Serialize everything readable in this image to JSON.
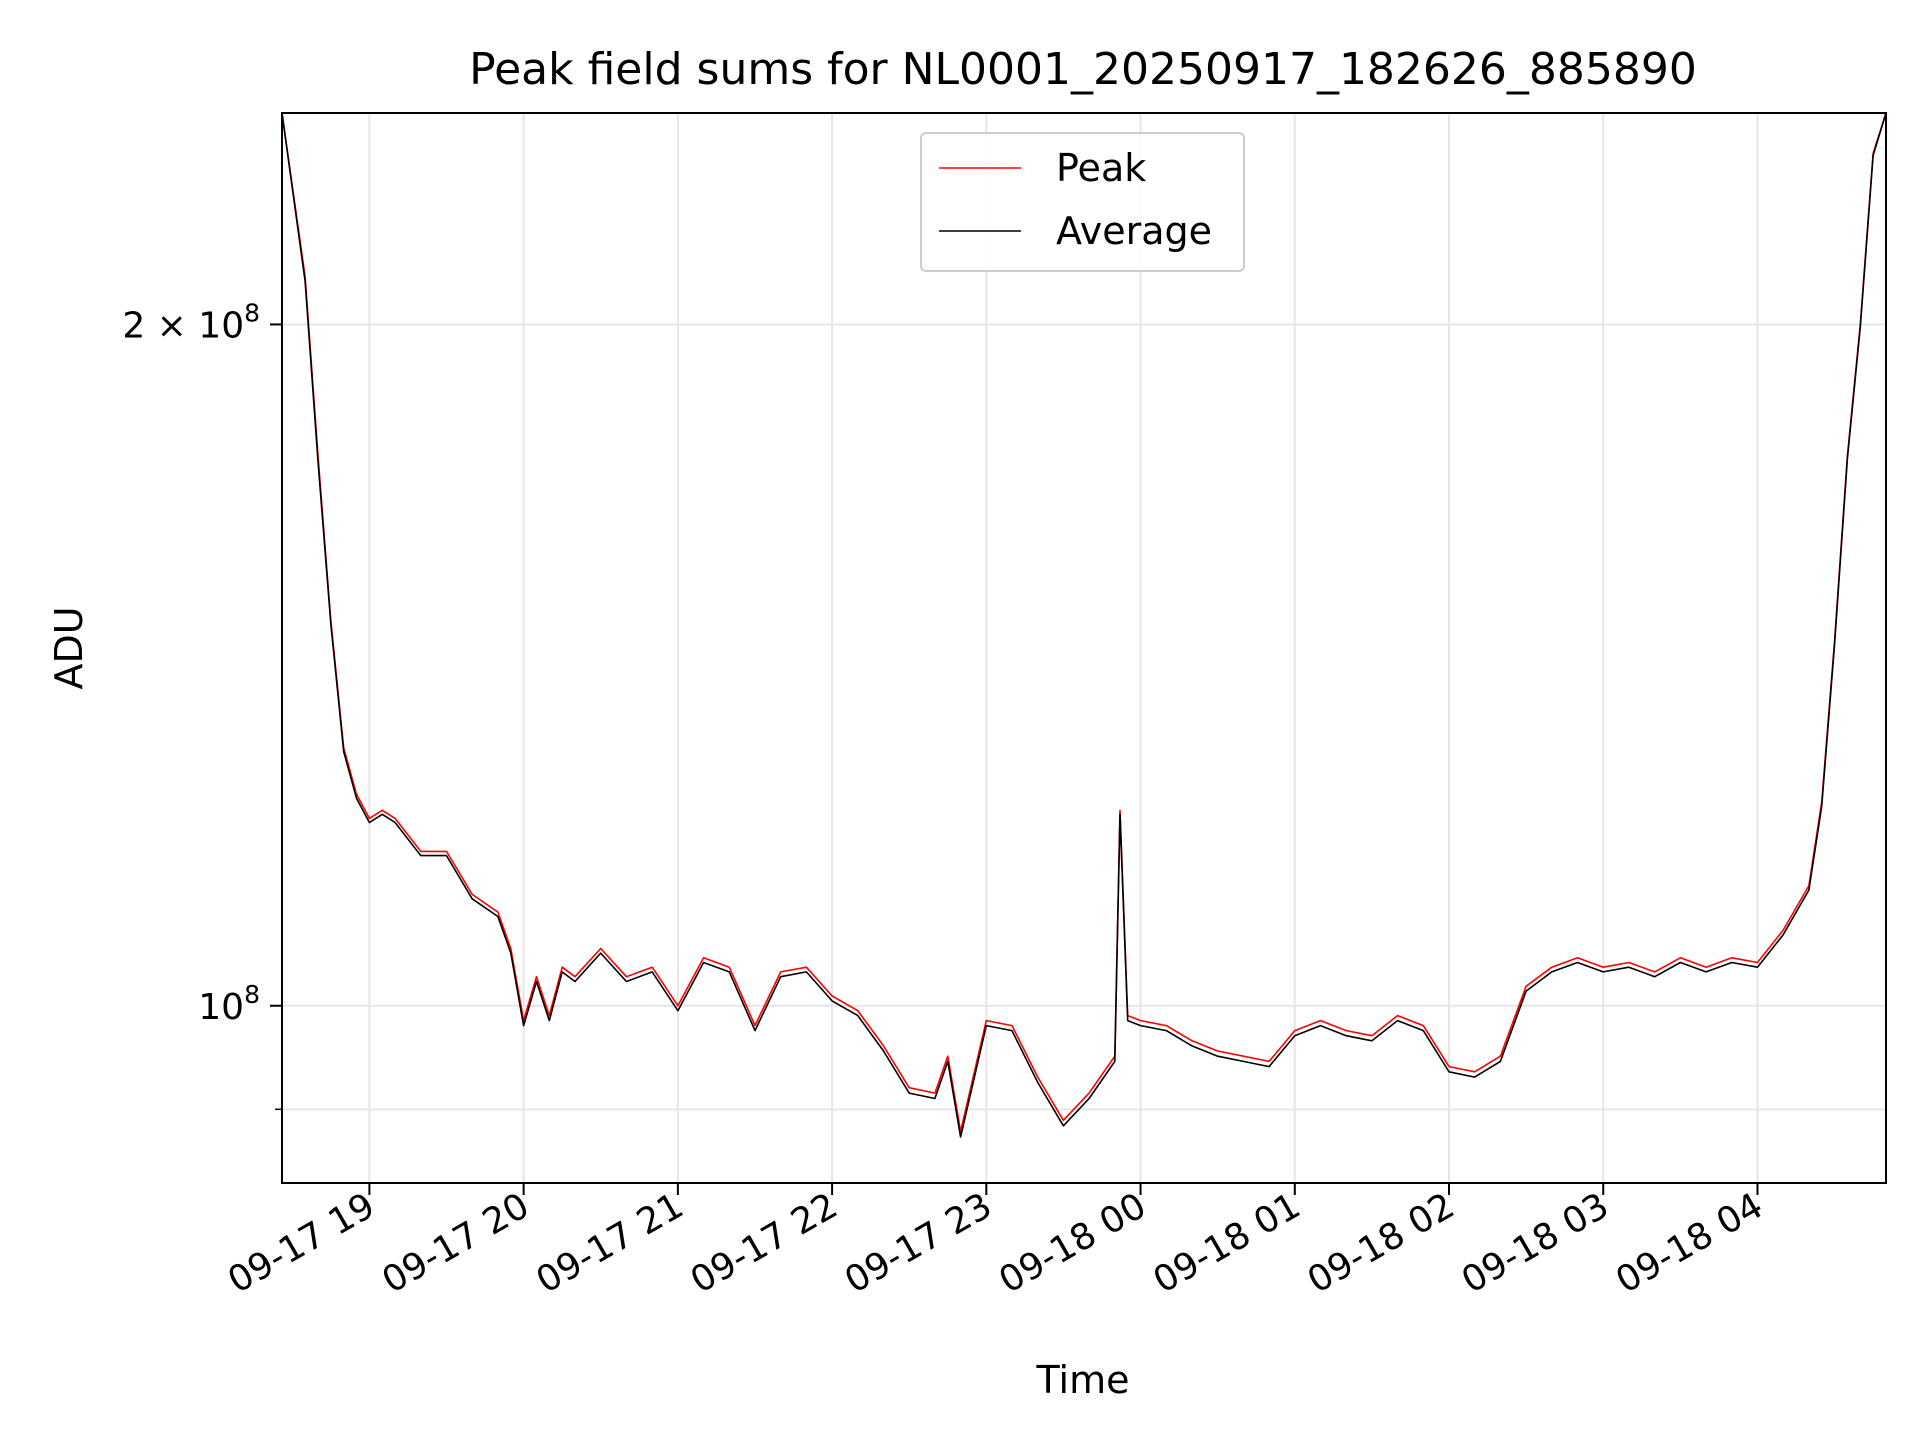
{
  "chart_data": {
    "type": "line",
    "title": "Peak field sums for NL0001_20250917_182626_885890",
    "xlabel": "Time",
    "ylabel": "ADU",
    "y_scale": "log",
    "ylim": [
      83500000,
      248000000
    ],
    "xlim": [
      "2025-09-17 18:26",
      "2025-09-18 04:50"
    ],
    "grid": true,
    "legend_position": "top-center",
    "x_tick_labels": [
      "09-17 19",
      "09-17 20",
      "09-17 21",
      "09-17 22",
      "09-17 23",
      "09-18 00",
      "09-18 01",
      "09-18 02",
      "09-18 03",
      "09-18 04"
    ],
    "x_tick_times": [
      "2025-09-17 19:00",
      "2025-09-17 20:00",
      "2025-09-17 21:00",
      "2025-09-17 22:00",
      "2025-09-17 23:00",
      "2025-09-18 00:00",
      "2025-09-18 01:00",
      "2025-09-18 02:00",
      "2025-09-18 03:00",
      "2025-09-18 04:00"
    ],
    "y_major_ticks": [
      {
        "value": 100000000,
        "base": "10",
        "exp": "8"
      },
      {
        "value": 200000000,
        "base": "2 × 10",
        "exp": "8"
      }
    ],
    "y_minor_ticks": [
      90000000
    ],
    "x": [
      "2025-09-17 18:26",
      "2025-09-17 18:35",
      "2025-09-17 18:40",
      "2025-09-17 18:45",
      "2025-09-17 18:50",
      "2025-09-17 18:55",
      "2025-09-17 19:00",
      "2025-09-17 19:05",
      "2025-09-17 19:10",
      "2025-09-17 19:20",
      "2025-09-17 19:30",
      "2025-09-17 19:40",
      "2025-09-17 19:50",
      "2025-09-17 19:55",
      "2025-09-17 20:00",
      "2025-09-17 20:05",
      "2025-09-17 20:10",
      "2025-09-17 20:15",
      "2025-09-17 20:20",
      "2025-09-17 20:30",
      "2025-09-17 20:40",
      "2025-09-17 20:50",
      "2025-09-17 21:00",
      "2025-09-17 21:10",
      "2025-09-17 21:20",
      "2025-09-17 21:30",
      "2025-09-17 21:40",
      "2025-09-17 21:50",
      "2025-09-17 22:00",
      "2025-09-17 22:10",
      "2025-09-17 22:20",
      "2025-09-17 22:30",
      "2025-09-17 22:40",
      "2025-09-17 22:45",
      "2025-09-17 22:50",
      "2025-09-17 23:00",
      "2025-09-17 23:10",
      "2025-09-17 23:20",
      "2025-09-17 23:30",
      "2025-09-17 23:40",
      "2025-09-17 23:50",
      "2025-09-17 23:52",
      "2025-09-17 23:55",
      "2025-09-18 00:00",
      "2025-09-18 00:10",
      "2025-09-18 00:20",
      "2025-09-18 00:30",
      "2025-09-18 00:40",
      "2025-09-18 00:50",
      "2025-09-18 01:00",
      "2025-09-18 01:10",
      "2025-09-18 01:20",
      "2025-09-18 01:30",
      "2025-09-18 01:40",
      "2025-09-18 01:50",
      "2025-09-18 02:00",
      "2025-09-18 02:10",
      "2025-09-18 02:20",
      "2025-09-18 02:30",
      "2025-09-18 02:40",
      "2025-09-18 02:50",
      "2025-09-18 03:00",
      "2025-09-18 03:10",
      "2025-09-18 03:20",
      "2025-09-18 03:30",
      "2025-09-18 03:40",
      "2025-09-18 03:50",
      "2025-09-18 04:00",
      "2025-09-18 04:10",
      "2025-09-18 04:20",
      "2025-09-18 04:25",
      "2025-09-18 04:30",
      "2025-09-18 04:35",
      "2025-09-18 04:40",
      "2025-09-18 04:45",
      "2025-09-18 04:50"
    ],
    "series": [
      {
        "name": "Peak",
        "color": "#ff0000",
        "values": [
          248000000,
          210000000,
          175000000,
          148000000,
          130000000,
          124000000,
          121000000,
          122000000,
          121000000,
          117000000,
          117000000,
          112000000,
          110000000,
          106000000,
          98500000,
          103000000,
          99000000,
          104000000,
          103000000,
          106000000,
          103000000,
          104000000,
          100000000,
          105000000,
          104000000,
          98000000,
          103500000,
          104000000,
          101000000,
          99500000,
          96000000,
          92000000,
          91500000,
          95000000,
          88000000,
          98500000,
          98000000,
          93000000,
          89000000,
          91500000,
          95000000,
          122000000,
          99000000,
          98500000,
          98000000,
          96500000,
          95500000,
          95000000,
          94500000,
          97500000,
          98500000,
          97500000,
          97000000,
          99000000,
          98000000,
          94000000,
          93500000,
          95000000,
          102000000,
          104000000,
          105000000,
          104000000,
          104500000,
          103500000,
          105000000,
          104000000,
          105000000,
          104500000,
          108000000,
          113000000,
          123000000,
          145000000,
          175000000,
          200000000,
          238000000,
          248000000
        ]
      },
      {
        "name": "Average",
        "color": "#000000",
        "values": [
          248000000,
          209000000,
          174000000,
          147500000,
          129500000,
          123500000,
          120500000,
          121500000,
          120500000,
          116500000,
          116500000,
          111500000,
          109500000,
          105500000,
          98000000,
          102500000,
          98500000,
          103500000,
          102500000,
          105500000,
          102500000,
          103500000,
          99500000,
          104500000,
          103500000,
          97500000,
          103000000,
          103500000,
          100500000,
          99000000,
          95500000,
          91500000,
          91000000,
          94500000,
          87500000,
          98000000,
          97500000,
          92500000,
          88500000,
          91000000,
          94500000,
          121500000,
          98500000,
          98000000,
          97500000,
          96000000,
          95000000,
          94500000,
          94000000,
          97000000,
          98000000,
          97000000,
          96500000,
          98500000,
          97500000,
          93500000,
          93000000,
          94500000,
          101500000,
          103500000,
          104500000,
          103500000,
          104000000,
          103000000,
          104500000,
          103500000,
          104500000,
          104000000,
          107500000,
          112500000,
          122500000,
          144500000,
          174500000,
          199500000,
          237500000,
          248000000
        ]
      }
    ]
  }
}
